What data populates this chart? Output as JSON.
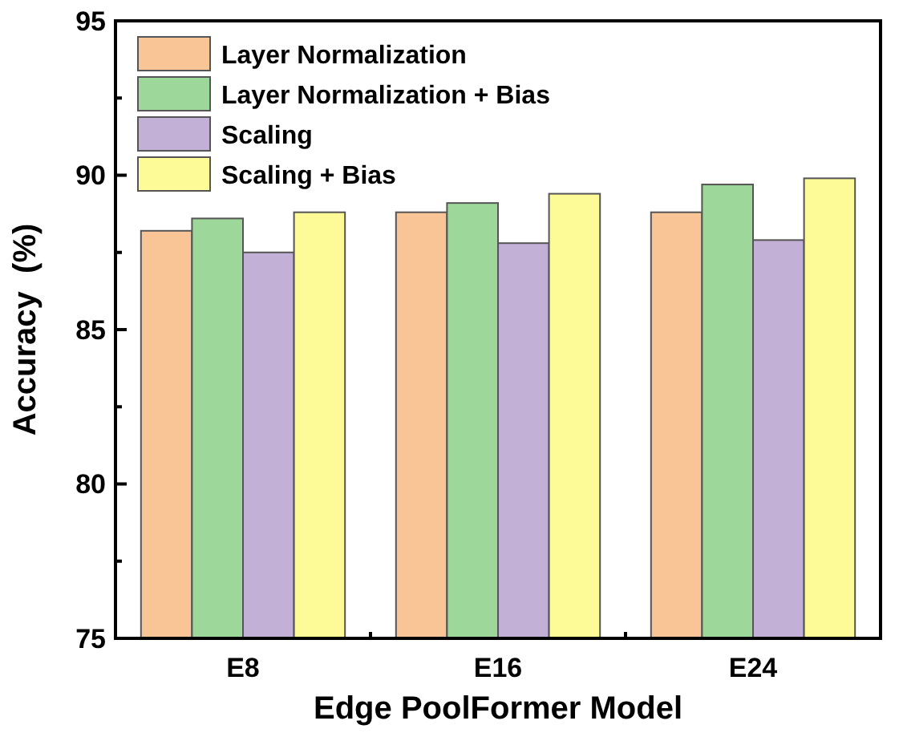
{
  "chart_data": {
    "type": "bar",
    "xlabel": "Edge PoolFormer Model",
    "ylabel": "Accuracy  (%)",
    "categories": [
      "E8",
      "E16",
      "E24"
    ],
    "series": [
      {
        "name": "Layer Normalization",
        "color": "#f9c596",
        "values": [
          88.2,
          88.8,
          88.8
        ]
      },
      {
        "name": "Layer Normalization + Bias",
        "color": "#9dd79a",
        "values": [
          88.6,
          89.1,
          89.7
        ]
      },
      {
        "name": "Scaling",
        "color": "#c2b0d6",
        "values": [
          87.5,
          87.8,
          87.9
        ]
      },
      {
        "name": "Scaling + Bias",
        "color": "#fdfb98",
        "values": [
          88.8,
          89.4,
          89.9
        ]
      }
    ],
    "ylim": [
      75,
      95
    ],
    "yticks": [
      75,
      {
        "value": 77.5,
        "label": null
      },
      80,
      {
        "value": 82.5,
        "label": null
      },
      85,
      {
        "value": 87.5,
        "label": null
      },
      90,
      {
        "value": 92.5,
        "label": null
      },
      95
    ],
    "legend": "top left",
    "grid": false
  }
}
